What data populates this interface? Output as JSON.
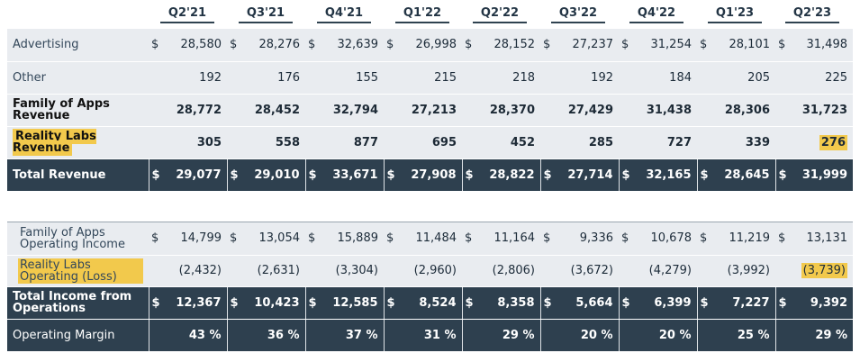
{
  "quarters": [
    "Q2'21",
    "Q3'21",
    "Q4'21",
    "Q1'22",
    "Q2'22",
    "Q3'22",
    "Q4'22",
    "Q1'23",
    "Q2'23"
  ],
  "currency_symbol": "$",
  "revenue": {
    "advertising": {
      "label": "Advertising",
      "values": [
        "28,580",
        "28,276",
        "32,639",
        "26,998",
        "28,152",
        "27,237",
        "31,254",
        "28,101",
        "31,498"
      ]
    },
    "other": {
      "label": "Other",
      "values": [
        "192",
        "176",
        "155",
        "215",
        "218",
        "192",
        "184",
        "205",
        "225"
      ]
    },
    "foa_revenue": {
      "label": "Family of Apps Revenue",
      "values": [
        "28,772",
        "28,452",
        "32,794",
        "27,213",
        "28,370",
        "27,429",
        "31,438",
        "28,306",
        "31,723"
      ]
    },
    "rl_revenue": {
      "label": "Reality Labs Revenue",
      "values": [
        "305",
        "558",
        "877",
        "695",
        "452",
        "285",
        "727",
        "339",
        "276"
      ]
    },
    "total_revenue": {
      "label": "Total Revenue",
      "values": [
        "29,077",
        "29,010",
        "33,671",
        "27,908",
        "28,822",
        "27,714",
        "32,165",
        "28,645",
        "31,999"
      ]
    }
  },
  "operations": {
    "foa_income": {
      "label": "Family of Apps Operating Income",
      "values": [
        "14,799",
        "13,054",
        "15,889",
        "11,484",
        "11,164",
        "9,336",
        "10,678",
        "11,219",
        "13,131"
      ]
    },
    "rl_loss": {
      "label": "Reality Labs Operating (Loss)",
      "values": [
        "(2,432)",
        "(2,631)",
        "(3,304)",
        "(2,960)",
        "(2,806)",
        "(3,672)",
        "(4,279)",
        "(3,992)",
        "(3,739)"
      ]
    },
    "total_income": {
      "label": "Total Income from Operations",
      "values": [
        "12,367",
        "10,423",
        "12,585",
        "8,524",
        "8,358",
        "5,664",
        "6,399",
        "7,227",
        "9,392"
      ]
    },
    "margin": {
      "label": "Operating Margin",
      "values": [
        "43 %",
        "36 %",
        "37 %",
        "31 %",
        "29 %",
        "20 %",
        "20 %",
        "25 %",
        "29 %"
      ]
    }
  },
  "colors": {
    "dark_row": "#2e404f",
    "light_row": "#e9ecf0",
    "highlight": "#f2c94c"
  }
}
